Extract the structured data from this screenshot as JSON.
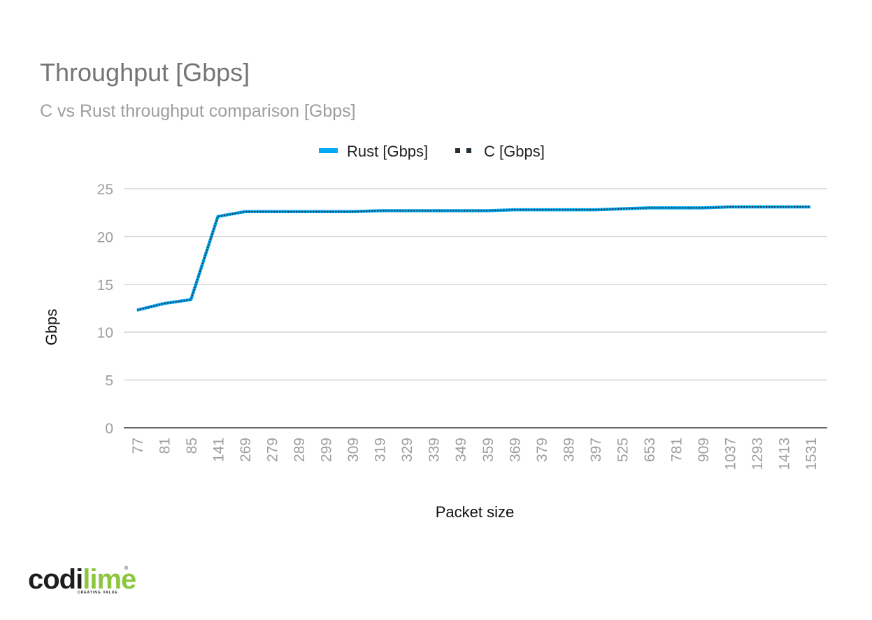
{
  "chart_data": {
    "type": "line",
    "title": "Throughput [Gbps]",
    "subtitle": "C vs Rust throughput comparison [Gbps]",
    "xlabel": "Packet size",
    "ylabel": "Gbps",
    "ylim": [
      0,
      25
    ],
    "yticks": [
      0,
      5,
      10,
      15,
      20,
      25
    ],
    "grid": true,
    "legend_position": "top-center",
    "categories": [
      "77",
      "81",
      "85",
      "141",
      "269",
      "279",
      "289",
      "299",
      "309",
      "319",
      "329",
      "339",
      "349",
      "359",
      "369",
      "379",
      "389",
      "397",
      "525",
      "653",
      "781",
      "909",
      "1037",
      "1293",
      "1413",
      "1531"
    ],
    "series": [
      {
        "name": "Rust [Gbps]",
        "color": "#03a9f4",
        "style": "solid",
        "values": [
          12.3,
          13.0,
          13.4,
          22.1,
          22.6,
          22.6,
          22.6,
          22.6,
          22.6,
          22.7,
          22.7,
          22.7,
          22.7,
          22.7,
          22.8,
          22.8,
          22.8,
          22.8,
          22.9,
          23.0,
          23.0,
          23.0,
          23.1,
          23.1,
          23.1,
          23.1
        ]
      },
      {
        "name": "C [Gbps]",
        "color": "#263238",
        "style": "dotted",
        "values": [
          12.3,
          13.0,
          13.4,
          22.1,
          22.6,
          22.6,
          22.6,
          22.6,
          22.6,
          22.7,
          22.7,
          22.7,
          22.7,
          22.7,
          22.8,
          22.8,
          22.8,
          22.8,
          22.9,
          23.0,
          23.0,
          23.0,
          23.1,
          23.1,
          23.1,
          23.1
        ]
      }
    ]
  },
  "logo": {
    "text_dark": "codi",
    "text_accent": "lime",
    "tagline": "CREATING VALUE",
    "mark": "®",
    "color_dark": "#1d1d1b",
    "color_accent": "#8cc63f"
  }
}
